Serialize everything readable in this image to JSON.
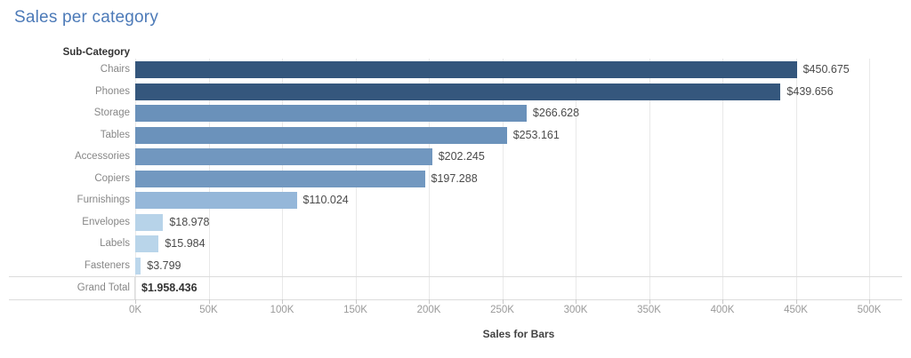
{
  "title": "Sales per category",
  "column_header": "Sub-Category",
  "colors": {
    "title": "#4c7ab8",
    "gridline": "#e9e9e9",
    "separator": "#dcdcdc",
    "category_label": "#878787",
    "value_label": "#4a4a4a",
    "tick_label": "#9a9a9a",
    "axis_title": "#424242"
  },
  "chart_data": {
    "type": "bar",
    "orientation": "horizontal",
    "title": "Sales per category",
    "row_header": "Sub-Category",
    "xlabel": "Sales for Bars",
    "ylabel": "Sub-Category",
    "xlim": [
      0,
      500000
    ],
    "grid": true,
    "legend": false,
    "categories": [
      "Chairs",
      "Phones",
      "Storage",
      "Tables",
      "Accessories",
      "Copiers",
      "Furnishings",
      "Envelopes",
      "Labels",
      "Fasteners"
    ],
    "values": [
      450675,
      439656,
      266628,
      253161,
      202245,
      197288,
      110024,
      18978,
      15984,
      3799
    ],
    "value_labels": [
      "$450.675",
      "$439.656",
      "$266.628",
      "$253.161",
      "$202.245",
      "$197.288",
      "$110.024",
      "$18.978",
      "$15.984",
      "$3.799"
    ],
    "bar_colors": [
      "#34567c",
      "#35577d",
      "#6a91ba",
      "#6b92bb",
      "#7197bf",
      "#7298c0",
      "#95b7d9",
      "#b7d3e9",
      "#b9d5ea",
      "#bcd7ec"
    ],
    "x_ticks": [
      "0K",
      "50K",
      "100K",
      "150K",
      "200K",
      "250K",
      "300K",
      "350K",
      "400K",
      "450K",
      "500K"
    ],
    "x_tick_values": [
      0,
      50000,
      100000,
      150000,
      200000,
      250000,
      300000,
      350000,
      400000,
      450000,
      500000
    ],
    "grand_total": {
      "label": "Grand Total",
      "value": 1958436,
      "value_label": "$1.958.436"
    }
  }
}
